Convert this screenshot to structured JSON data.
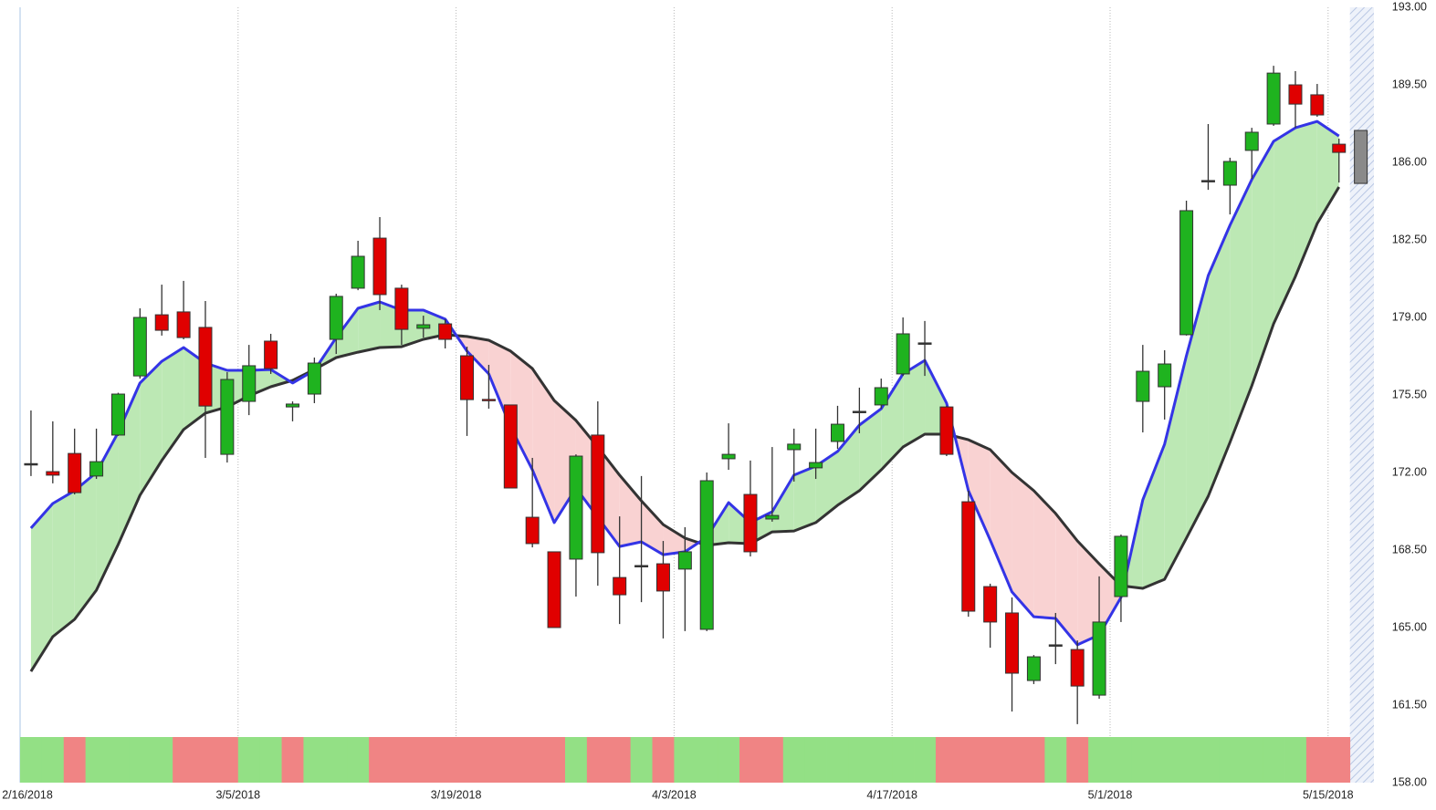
{
  "chart_data": {
    "type": "candlestick",
    "categories": [
      "2/16/2018",
      null,
      null,
      null,
      null,
      null,
      null,
      null,
      null,
      null,
      "3/5/2018",
      null,
      null,
      null,
      null,
      null,
      null,
      null,
      null,
      null,
      "3/19/2018",
      null,
      null,
      null,
      null,
      null,
      null,
      null,
      null,
      null,
      "4/3/2018",
      null,
      null,
      null,
      null,
      null,
      null,
      null,
      null,
      null,
      "4/17/2018",
      null,
      null,
      null,
      null,
      null,
      null,
      null,
      null,
      null,
      "5/1/2018",
      null,
      null,
      null,
      null,
      null,
      null,
      null,
      null,
      null,
      "5/15/2018"
    ],
    "open": [
      172.4,
      172.04,
      172.86,
      171.84,
      173.69,
      176.36,
      179.12,
      179.25,
      178.55,
      172.82,
      175.21,
      177.93,
      174.96,
      175.54,
      178.01,
      180.32,
      182.58,
      180.32,
      178.51,
      178.71,
      177.27,
      175.3,
      175.05,
      169.98,
      168.42,
      168.09,
      173.69,
      167.26,
      167.8,
      167.88,
      167.64,
      164.92,
      172.62,
      171.01,
      169.9,
      173.03,
      172.21,
      173.4,
      174.76,
      175.05,
      176.45,
      177.85,
      174.96,
      170.68,
      166.85,
      165.66,
      162.61,
      164.22,
      164.01,
      161.95,
      166.4,
      175.21,
      175.87,
      178.22,
      185.18,
      184.97,
      186.54,
      187.73,
      189.5,
      189.05,
      186.82
    ],
    "high": [
      174.8,
      174.31,
      173.98,
      173.98,
      175.6,
      179.41,
      180.48,
      180.65,
      179.74,
      176.53,
      177.76,
      178.26,
      175.21,
      177.19,
      180.07,
      182.46,
      183.53,
      180.48,
      179.08,
      178.92,
      177.68,
      176.86,
      175.05,
      172.66,
      168.42,
      172.82,
      175.21,
      170.02,
      171.84,
      168.91,
      169.53,
      172.0,
      174.22,
      172.54,
      173.15,
      173.98,
      173.98,
      175.01,
      175.83,
      176.24,
      179.0,
      178.84,
      175.0,
      171.18,
      166.98,
      166.36,
      163.76,
      165.66,
      164.42,
      167.31,
      169.2,
      177.76,
      177.52,
      184.27,
      187.73,
      186.21,
      187.56,
      190.36,
      190.12,
      189.54,
      187.07
    ],
    "low": [
      171.84,
      171.51,
      171.01,
      171.71,
      173.65,
      176.24,
      178.18,
      178.01,
      172.66,
      172.45,
      174.59,
      176.45,
      174.31,
      175.13,
      177.35,
      180.23,
      179.33,
      177.76,
      178.09,
      177.6,
      173.65,
      174.88,
      171.3,
      168.62,
      165.0,
      166.4,
      166.89,
      165.16,
      166.15,
      164.51,
      164.84,
      164.84,
      172.12,
      168.21,
      169.78,
      171.59,
      171.71,
      173.07,
      173.77,
      174.88,
      176.36,
      176.36,
      172.74,
      165.49,
      164.09,
      161.21,
      162.45,
      163.35,
      160.64,
      161.79,
      165.25,
      173.81,
      174.39,
      178.18,
      184.76,
      183.65,
      185.26,
      187.65,
      187.56,
      188.06,
      185.09
    ],
    "close": [
      172.4,
      171.88,
      171.09,
      172.49,
      175.54,
      179.0,
      178.42,
      178.09,
      175.0,
      176.2,
      176.82,
      176.69,
      175.09,
      176.94,
      179.95,
      181.76,
      180.03,
      178.46,
      178.67,
      178.01,
      175.29,
      175.25,
      171.3,
      168.79,
      165.0,
      172.74,
      168.38,
      166.48,
      167.8,
      166.65,
      168.42,
      171.63,
      172.82,
      168.42,
      170.06,
      173.28,
      172.45,
      174.18,
      174.76,
      175.83,
      178.26,
      177.85,
      172.82,
      165.74,
      165.25,
      162.94,
      163.68,
      164.22,
      162.36,
      165.25,
      169.12,
      176.57,
      176.9,
      183.82,
      185.18,
      186.04,
      187.36,
      190.03,
      188.63,
      188.14,
      186.45
    ],
    "up_color": "#1fb31f",
    "down_color": "#e00000",
    "doji_color": "#333333",
    "pending": {
      "color": "#8a8a8a",
      "range": [
        185.05,
        187.44
      ]
    },
    "ma_fast": {
      "color": "#3434e6",
      "values": [
        169.49,
        170.6,
        171.18,
        172.0,
        173.81,
        176.04,
        177.02,
        177.64,
        176.94,
        176.61,
        176.61,
        176.65,
        176.04,
        176.61,
        178.09,
        179.41,
        179.7,
        179.33,
        179.33,
        178.92,
        177.48,
        176.45,
        174.06,
        172.12,
        169.74,
        171.3,
        169.98,
        168.66,
        168.87,
        168.29,
        168.42,
        169.08,
        170.64,
        169.74,
        170.23,
        171.88,
        172.29,
        172.95,
        174.14,
        174.88,
        176.45,
        177.06,
        175.13,
        171.18,
        168.95,
        166.61,
        165.49,
        165.41,
        164.22,
        164.67,
        166.36,
        170.76,
        173.28,
        177.27,
        180.89,
        183.16,
        185.22,
        186.95,
        187.56,
        187.85,
        187.19
      ]
    },
    "ma_slow": {
      "color": "#333333",
      "values": [
        163.02,
        164.59,
        165.37,
        166.69,
        168.75,
        170.97,
        172.54,
        173.94,
        174.68,
        174.96,
        175.46,
        175.87,
        176.16,
        176.65,
        177.19,
        177.43,
        177.64,
        177.68,
        178.01,
        178.22,
        178.14,
        177.97,
        177.48,
        176.69,
        175.25,
        174.35,
        173.15,
        171.88,
        170.72,
        169.65,
        169.04,
        168.71,
        168.83,
        168.79,
        169.32,
        169.36,
        169.74,
        170.52,
        171.18,
        172.12,
        173.15,
        173.73,
        173.73,
        173.48,
        173.03,
        172.0,
        171.18,
        170.15,
        168.91,
        167.88,
        166.89,
        166.77,
        167.18,
        169.04,
        170.93,
        173.36,
        175.91,
        178.71,
        180.85,
        183.24,
        184.89
      ]
    },
    "fill_up_color": "#bce8b4",
    "fill_down_color": "#f9d2d2",
    "band": [
      "#93e085",
      "#93e085",
      "#f08484",
      "#93e085",
      "#93e085",
      "#93e085",
      "#93e085",
      "#f08484",
      "#f08484",
      "#f08484",
      "#93e085",
      "#93e085",
      "#f08484",
      "#93e085",
      "#93e085",
      "#93e085",
      "#f08484",
      "#f08484",
      "#f08484",
      "#f08484",
      "#f08484",
      "#f08484",
      "#f08484",
      "#f08484",
      "#f08484",
      "#93e085",
      "#f08484",
      "#f08484",
      "#93e085",
      "#f08484",
      "#93e085",
      "#93e085",
      "#93e085",
      "#f08484",
      "#f08484",
      "#93e085",
      "#93e085",
      "#93e085",
      "#93e085",
      "#93e085",
      "#93e085",
      "#93e085",
      "#f08484",
      "#f08484",
      "#f08484",
      "#f08484",
      "#f08484",
      "#93e085",
      "#f08484",
      "#93e085",
      "#93e085",
      "#93e085",
      "#93e085",
      "#93e085",
      "#93e085",
      "#93e085",
      "#93e085",
      "#93e085",
      "#93e085",
      "#f08484",
      "#f08484"
    ],
    "ylim": [
      158,
      193
    ],
    "yticks": [
      {
        "value": 158,
        "label": "158.00"
      },
      {
        "value": 161.5,
        "label": "161.50"
      },
      {
        "value": 165,
        "label": "165.00"
      },
      {
        "value": 168.5,
        "label": "168.50"
      },
      {
        "value": 172,
        "label": "172.00"
      },
      {
        "value": 175.5,
        "label": "175.50"
      },
      {
        "value": 179,
        "label": "179.00"
      },
      {
        "value": 182.5,
        "label": "182.50"
      },
      {
        "value": 186,
        "label": "186.00"
      },
      {
        "value": 189.5,
        "label": "189.50"
      },
      {
        "value": 193,
        "label": "193.00"
      }
    ],
    "grid": true
  }
}
